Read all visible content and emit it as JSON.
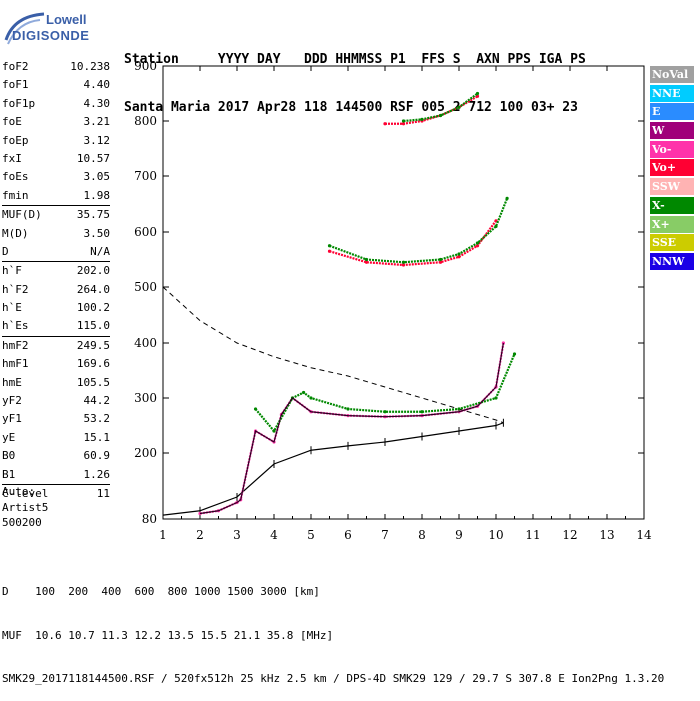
{
  "logo": {
    "top_text": "Lowell",
    "bottom_text": "DIGISONDE"
  },
  "header": {
    "line1": "Station     YYYY DAY   DDD HHMMSS P1  FFS S  AXN PPS IGA PS",
    "line2": "Santa Maria 2017 Apr28 118 144500 RSF 005 2 712 100 03+ 23"
  },
  "params": [
    {
      "label": "foF2",
      "value": "10.238"
    },
    {
      "label": "foF1",
      "value": "4.40"
    },
    {
      "label": "foF1p",
      "value": "4.30"
    },
    {
      "label": "foE",
      "value": "3.21"
    },
    {
      "label": "foEp",
      "value": "3.12"
    },
    {
      "label": "fxI",
      "value": "10.57"
    },
    {
      "label": "foEs",
      "value": "3.05"
    },
    {
      "label": "fmin",
      "value": "1.98"
    },
    {
      "label": "MUF(D)",
      "value": "35.75"
    },
    {
      "label": "M(D)",
      "value": "3.50"
    },
    {
      "label": "D",
      "value": "N/A"
    },
    {
      "label": "h`F",
      "value": "202.0"
    },
    {
      "label": "h`F2",
      "value": "264.0"
    },
    {
      "label": "h`E",
      "value": "100.2"
    },
    {
      "label": "h`Es",
      "value": "115.0"
    },
    {
      "label": "hmF2",
      "value": "249.5"
    },
    {
      "label": "hmF1",
      "value": "169.6"
    },
    {
      "label": "hmE",
      "value": "105.5"
    },
    {
      "label": "yF2",
      "value": "44.2"
    },
    {
      "label": "yF1",
      "value": "53.2"
    },
    {
      "label": "yE",
      "value": "15.1"
    },
    {
      "label": "B0",
      "value": "60.9"
    },
    {
      "label": "B1",
      "value": "1.26"
    },
    {
      "label": "C-level",
      "value": "11"
    }
  ],
  "auto": {
    "line1": "Auto:",
    "line2": "Artist5",
    "line3": "500200"
  },
  "legend": [
    {
      "label": "NoVal",
      "color": "#a0a0a0"
    },
    {
      "label": "NNE",
      "color": "#00ccff"
    },
    {
      "label": "E",
      "color": "#2a8cff"
    },
    {
      "label": "W",
      "color": "#a0007a"
    },
    {
      "label": "Vo-",
      "color": "#ff33aa"
    },
    {
      "label": "Vo+",
      "color": "#ff0033"
    },
    {
      "label": "SSW",
      "color": "#ffb3b3"
    },
    {
      "label": "X-",
      "color": "#008800"
    },
    {
      "label": "X+",
      "color": "#88cc66"
    },
    {
      "label": "SSE",
      "color": "#cccc00"
    },
    {
      "label": "NNW",
      "color": "#1a00e6"
    }
  ],
  "footer": {
    "line1": "D    100  200  400  600  800 1000 1500 3000 [km]",
    "line2": "MUF  10.6 10.7 11.3 12.2 13.5 15.5 21.1 35.8 [MHz]",
    "line3": "SMK29_2017118144500.RSF / 520fx512h 25 kHz 2.5 km / DPS-4D SMK29 129 / 29.7 S 307.8 E Ion2Png 1.3.20"
  },
  "chart_data": {
    "type": "scatter",
    "xlim": [
      1,
      14
    ],
    "ylim": [
      80,
      900
    ],
    "x_ticks": [
      "1",
      "2",
      "3",
      "4",
      "5",
      "6",
      "7",
      "8",
      "9",
      "10",
      "11",
      "12",
      "13",
      "14"
    ],
    "y_ticks": [
      "80",
      "200",
      "300",
      "400",
      "500",
      "600",
      "700",
      "800",
      "900"
    ],
    "series": [
      {
        "name": "Vo-",
        "color": "#ff33aa",
        "x": [
          2.0,
          2.5,
          3.0,
          3.1,
          3.5,
          4.0,
          4.2,
          4.5,
          5,
          6,
          7,
          8,
          9,
          9.5,
          10.0,
          10.2
        ],
        "y": [
          90,
          95,
          110,
          115,
          240,
          220,
          270,
          300,
          275,
          268,
          266,
          268,
          275,
          285,
          320,
          400
        ]
      },
      {
        "name": "X-",
        "color": "#008800",
        "x": [
          3.5,
          4.0,
          4.5,
          4.8,
          5,
          6,
          7,
          8,
          9,
          10.0,
          10.5
        ],
        "y": [
          280,
          240,
          300,
          310,
          300,
          280,
          275,
          275,
          280,
          300,
          380
        ]
      },
      {
        "name": "trace_pink_800",
        "color": "#ff0033",
        "x": [
          7.0,
          7.5,
          8.0,
          8.5,
          9.0,
          9.5
        ],
        "y": [
          795,
          795,
          800,
          810,
          825,
          845
        ]
      },
      {
        "name": "trace_green_800",
        "color": "#008800",
        "x": [
          7.5,
          8.0,
          8.5,
          9.0,
          9.5
        ],
        "y": [
          800,
          803,
          810,
          825,
          850
        ]
      },
      {
        "name": "trace_pink_560",
        "color": "#ff0033",
        "x": [
          5.5,
          6.5,
          7.5,
          8.5,
          9.0,
          9.5,
          10.0
        ],
        "y": [
          565,
          545,
          540,
          545,
          555,
          575,
          620
        ]
      },
      {
        "name": "trace_green_560",
        "color": "#008800",
        "x": [
          5.5,
          6.5,
          7.5,
          8.5,
          9.0,
          9.5,
          10.0,
          10.3
        ],
        "y": [
          575,
          550,
          545,
          550,
          560,
          580,
          610,
          660
        ]
      }
    ],
    "profile": {
      "x": [
        1,
        2,
        3,
        4,
        5,
        6,
        7,
        8,
        9,
        10,
        10.2
      ],
      "y": [
        87,
        95,
        120,
        180,
        205,
        213,
        220,
        230,
        240,
        250,
        255
      ]
    },
    "muf_curve": {
      "x": [
        1,
        2,
        3,
        4,
        5,
        6,
        7,
        8,
        9,
        10,
        10.2
      ],
      "y": [
        500,
        440,
        400,
        375,
        355,
        340,
        320,
        300,
        280,
        260,
        255
      ]
    }
  }
}
